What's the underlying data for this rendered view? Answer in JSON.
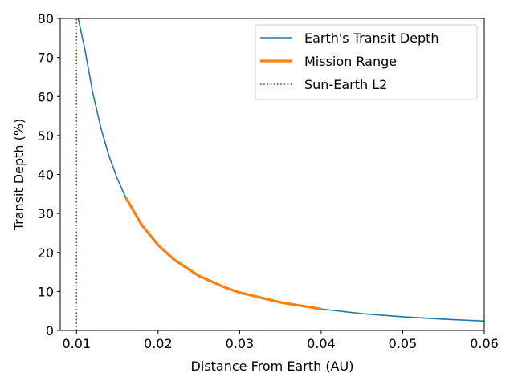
{
  "chart_data": {
    "type": "line",
    "title": "",
    "xlabel": "Distance From Earth (AU)",
    "ylabel": "Transit Depth (%)",
    "xlim": [
      0.008,
      0.06
    ],
    "ylim": [
      0,
      80
    ],
    "x_ticks": [
      0.01,
      0.02,
      0.03,
      0.04,
      0.05,
      0.06
    ],
    "x_tick_labels": [
      "0.01",
      "0.02",
      "0.03",
      "0.04",
      "0.05",
      "0.06"
    ],
    "y_ticks": [
      0,
      10,
      20,
      30,
      40,
      50,
      60,
      70,
      80
    ],
    "y_tick_labels": [
      "0",
      "10",
      "20",
      "30",
      "40",
      "50",
      "60",
      "70",
      "80"
    ],
    "grid": false,
    "legend_position": "top-right",
    "series": [
      {
        "name": "Earth's Transit Depth",
        "color": "#1f77b4",
        "style": "solid",
        "x": [
          0.0102,
          0.011,
          0.012,
          0.013,
          0.014,
          0.015,
          0.016,
          0.018,
          0.02,
          0.022,
          0.025,
          0.028,
          0.03,
          0.035,
          0.04,
          0.045,
          0.05,
          0.055,
          0.06
        ],
        "y": [
          80.0,
          72.3,
          60.8,
          51.8,
          44.6,
          38.9,
          34.2,
          27.0,
          21.9,
          18.1,
          14.0,
          11.2,
          9.7,
          7.2,
          5.5,
          4.3,
          3.5,
          2.9,
          2.4
        ]
      },
      {
        "name": "Mission Range",
        "color": "#ff7f0e",
        "style": "solid-thick",
        "x": [
          0.016,
          0.018,
          0.02,
          0.022,
          0.025,
          0.028,
          0.03,
          0.035,
          0.04
        ],
        "y": [
          34.2,
          27.0,
          21.9,
          18.1,
          14.0,
          11.2,
          9.7,
          7.2,
          5.5
        ]
      },
      {
        "name": "Sun-Earth L2",
        "color": "#008000",
        "style": "dotted-vertical",
        "x": [
          0.01,
          0.01
        ],
        "y": [
          0,
          80
        ]
      }
    ]
  }
}
